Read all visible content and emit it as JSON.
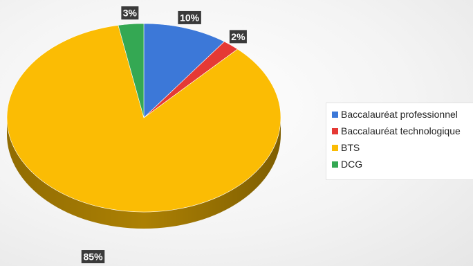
{
  "chart_data": {
    "type": "pie",
    "title": "",
    "categories": [
      "Baccalauréat professionnel",
      "Baccalauréat technologique",
      "BTS",
      "DCG"
    ],
    "values": [
      10,
      2,
      85,
      3
    ],
    "data_labels": [
      "10%",
      "2%",
      "85%",
      "3%"
    ],
    "colors": [
      "#3c78d8",
      "#e53935",
      "#fbbc04",
      "#34a853"
    ],
    "style": "3d",
    "legend_position": "right"
  }
}
